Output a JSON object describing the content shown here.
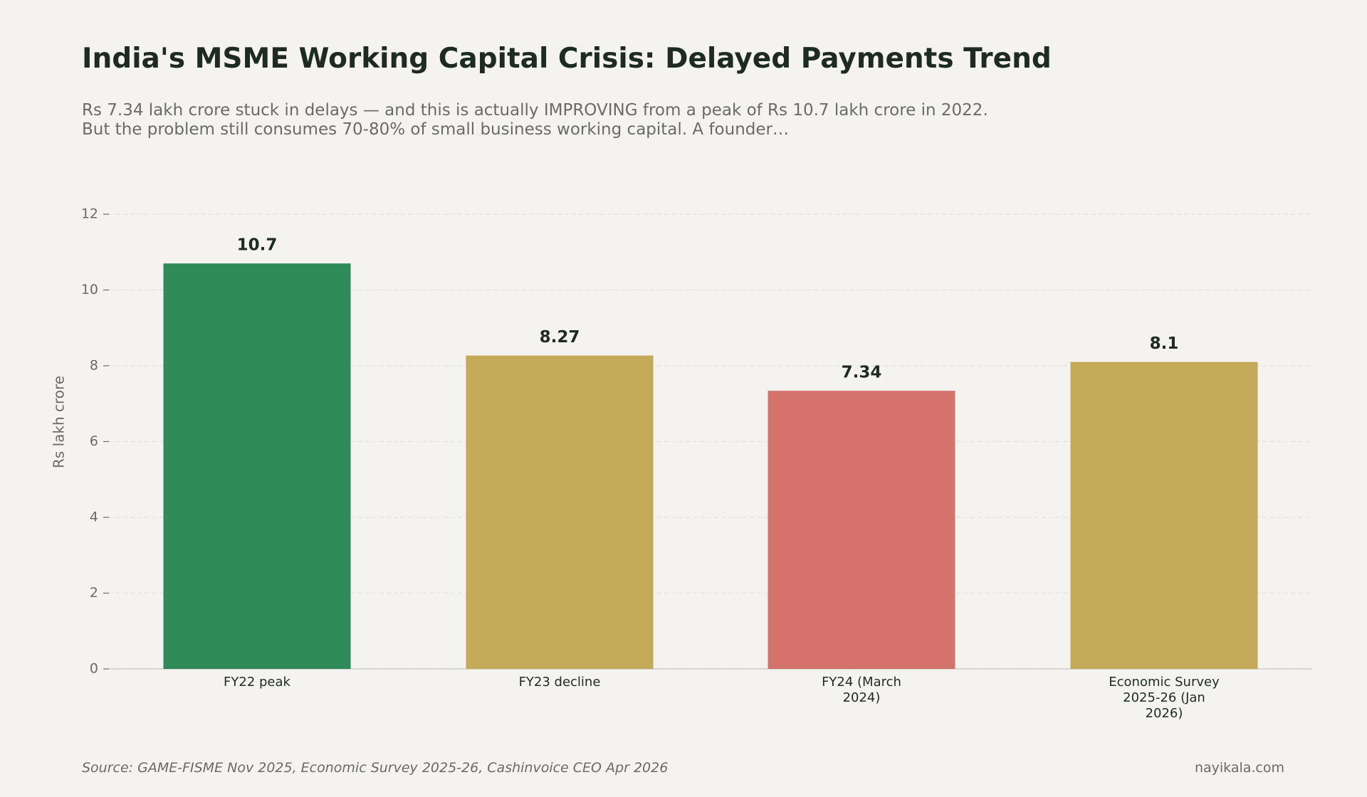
{
  "chart_data": {
    "type": "bar",
    "title": "India's MSME Working Capital Crisis: Delayed Payments Trend",
    "subtitle": "Rs 7.34 lakh crore stuck in delays — and this is actually IMPROVING from a peak of Rs 10.7 lakh crore in 2022. But the problem still consumes 70-80% of small business working capital. A founder…",
    "y_label": "Rs lakh crore",
    "categories": [
      "FY22 peak",
      "FY23 decline",
      "FY24 (March 2024)",
      "Economic Survey 2025-26 (Jan 2026)"
    ],
    "values": [
      10.7,
      8.27,
      7.34,
      8.1
    ],
    "colors": [
      "#2e8b57",
      "#c4aa58",
      "#d4726c",
      "#c4aa58"
    ],
    "ylim": [
      0,
      12
    ],
    "yticks": [
      0,
      2,
      4,
      6,
      8,
      10,
      12
    ],
    "grid": true,
    "source": "Source: GAME-FISME Nov 2025, Economic Survey 2025-26, Cashinvoice CEO Apr 2026",
    "credit": "nayikala.com"
  }
}
